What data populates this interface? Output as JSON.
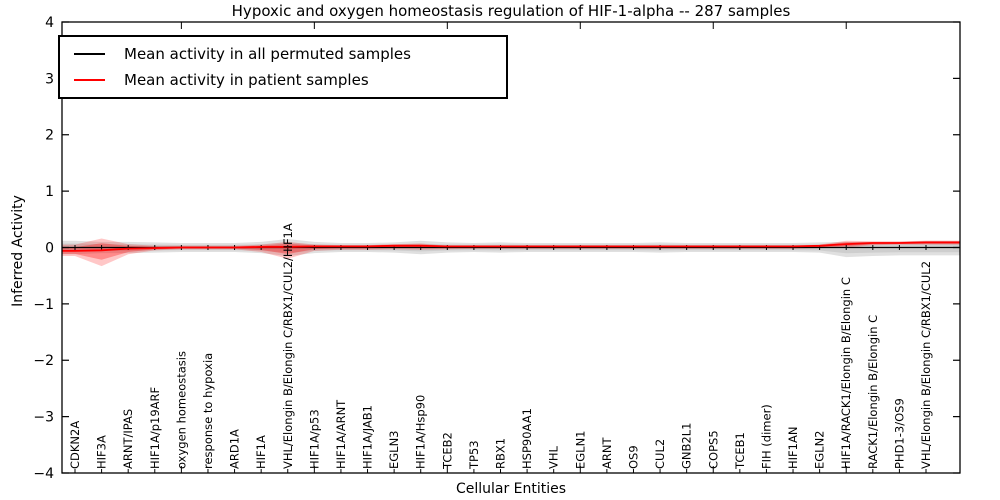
{
  "chart_data": {
    "type": "line",
    "title": "Hypoxic and oxygen homeostasis regulation of HIF-1-alpha -- 287 samples",
    "xlabel": "Cellular Entities",
    "ylabel": "Inferred Activity",
    "ylim": [
      -4,
      4
    ],
    "yticks": [
      -4,
      -3,
      -2,
      -1,
      0,
      1,
      2,
      3,
      4
    ],
    "x_major_tick_step": 5,
    "grid": "off",
    "legend_position": "upper left",
    "axis_color": "#000000",
    "categories": [
      "CDKN2A",
      "HIF3A",
      "ARNT/IPAS",
      "HIF1A/p19ARF",
      "oxygen homeostasis",
      "response to hypoxia",
      "ARD1A",
      "HIF1A",
      "VHL/Elongin B/Elongin C/RBX1/CUL2/HIF1A",
      "HIF1A/p53",
      "HIF1A/ARNT",
      "HIF1A/JAB1",
      "EGLN3",
      "HIF1A/Hsp90",
      "TCEB2",
      "TP53",
      "RBX1",
      "HSP90AA1",
      "VHL",
      "EGLN1",
      "ARNT",
      "OS9",
      "CUL2",
      "GNB2L1",
      "COPS5",
      "TCEB1",
      "FIH (dimer)",
      "HIF1AN",
      "EGLN2",
      "HIF1A/RACK1/Elongin B/Elongin C",
      "RACK1/Elongin B/Elongin C",
      "PHD1-3/OS9",
      "VHL/Elongin B/Elongin C/RBX1/CUL2"
    ],
    "series": [
      {
        "name": "Mean activity in all permuted samples",
        "color": "#000000",
        "band_color": "#000000",
        "band_alpha": 0.12,
        "values": [
          0,
          0,
          0,
          0,
          0,
          0,
          0,
          0,
          0,
          0,
          0,
          0,
          0,
          0,
          0,
          0,
          0,
          0,
          0,
          0,
          0,
          0,
          0,
          0,
          0,
          0,
          0,
          0,
          0,
          0,
          0,
          0,
          0
        ],
        "band_upper": [
          0.12,
          0.1,
          0.1,
          0.09,
          0.08,
          0.08,
          0.08,
          0.1,
          0.15,
          0.1,
          0.08,
          0.08,
          0.09,
          0.12,
          0.09,
          0.08,
          0.09,
          0.08,
          0.08,
          0.08,
          0.08,
          0.08,
          0.09,
          0.08,
          0.08,
          0.08,
          0.08,
          0.08,
          0.09,
          0.1,
          0.1,
          0.1,
          0.12
        ],
        "band_lower": [
          -0.12,
          -0.1,
          -0.1,
          -0.09,
          -0.08,
          -0.08,
          -0.08,
          -0.1,
          -0.15,
          -0.1,
          -0.08,
          -0.08,
          -0.09,
          -0.12,
          -0.09,
          -0.08,
          -0.09,
          -0.08,
          -0.08,
          -0.08,
          -0.08,
          -0.08,
          -0.09,
          -0.08,
          -0.08,
          -0.08,
          -0.08,
          -0.08,
          -0.09,
          -0.17,
          -0.15,
          -0.14,
          -0.14
        ]
      },
      {
        "name": "Mean activity in patient samples",
        "color": "#ff0000",
        "band_color": "#ff0000",
        "band_alpha": 0.22,
        "values": [
          -0.06,
          -0.05,
          -0.02,
          -0.01,
          0,
          0,
          0,
          0.01,
          0.01,
          0.02,
          0.02,
          0.02,
          0.03,
          0.03,
          0.02,
          0.02,
          0.02,
          0.02,
          0.02,
          0.02,
          0.02,
          0.02,
          0.02,
          0.02,
          0.02,
          0.02,
          0.02,
          0.02,
          0.03,
          0.06,
          0.08,
          0.08,
          0.09
        ],
        "band_upper": [
          0.05,
          0.16,
          0.06,
          0.03,
          0.03,
          0.03,
          0.03,
          0.05,
          0.1,
          0.05,
          0.04,
          0.04,
          0.06,
          0.07,
          0.03,
          0.025,
          0.025,
          0.025,
          0.025,
          0.025,
          0.025,
          0.025,
          0.025,
          0.025,
          0.025,
          0.025,
          0.025,
          0.025,
          0.05,
          0.12,
          0.11,
          0.11,
          0.12
        ],
        "band_lower": [
          -0.15,
          -0.33,
          -0.12,
          -0.05,
          -0.03,
          -0.03,
          -0.03,
          -0.08,
          -0.2,
          -0.06,
          -0.04,
          -0.04,
          -0.03,
          -0.04,
          -0.03,
          -0.025,
          -0.025,
          -0.025,
          -0.025,
          -0.025,
          -0.025,
          -0.025,
          -0.025,
          -0.025,
          -0.025,
          -0.025,
          -0.025,
          -0.025,
          -0.01,
          0.0,
          0.04,
          0.05,
          0.05
        ]
      }
    ]
  }
}
